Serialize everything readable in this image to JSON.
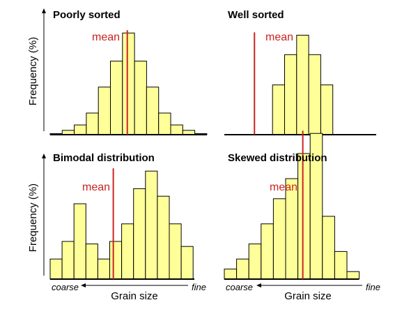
{
  "chart_data": [
    {
      "type": "bar",
      "title": "Poorly sorted",
      "ylabel": "Frequency (%)",
      "xlabel": "",
      "mean_label": "mean",
      "mean_bin": 6.4,
      "values": [
        0.5,
        2,
        4.5,
        10,
        22,
        34,
        47,
        34,
        22,
        10,
        4.5,
        2,
        0.5
      ],
      "ylim": [
        0,
        50
      ]
    },
    {
      "type": "bar",
      "title": "Well sorted",
      "ylabel": "",
      "xlabel": "",
      "mean_label": "mean",
      "mean_bin": 2.5,
      "values": [
        0,
        0,
        0,
        0,
        23,
        37,
        46,
        37,
        23,
        0,
        0,
        0,
        0
      ],
      "ylim": [
        0,
        50
      ]
    },
    {
      "type": "bar",
      "title": "Bimodal distribution",
      "ylabel": "Frequency (%)",
      "xlabel": "Grain size",
      "x_coarse": "coarse",
      "x_fine": "fine",
      "mean_label": "mean",
      "mean_bin": 5.3,
      "values": [
        8,
        15,
        30,
        14,
        8,
        15,
        22,
        36,
        43,
        33,
        22,
        13
      ],
      "ylim": [
        0,
        64
      ]
    },
    {
      "type": "bar",
      "title": "Skewed distribution",
      "ylabel": "",
      "xlabel": "Grain size",
      "x_coarse": "coarse",
      "x_fine": "fine",
      "mean_label": "mean",
      "mean_bin": 6.4,
      "values": [
        4,
        8,
        14,
        22,
        32,
        40,
        50,
        58,
        25,
        11,
        3
      ],
      "ylim": [
        0,
        64
      ]
    }
  ]
}
